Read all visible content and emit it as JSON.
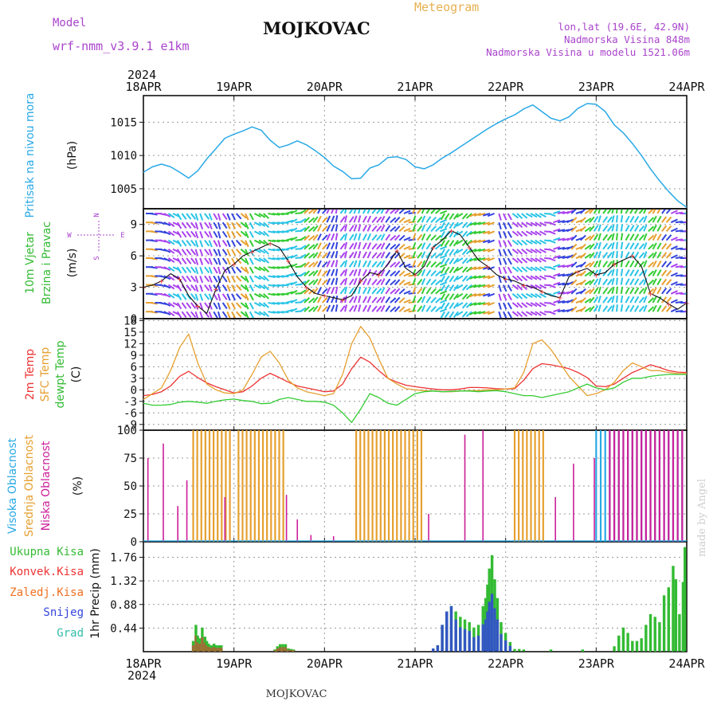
{
  "header": {
    "model_label": "Model",
    "model_name": "wrf-nmm_v3.9.1 e1km",
    "title": "MOJKOVAC",
    "chart_kind": "Meteogram",
    "lonlat": "lon,lat (19.6E, 42.9N)",
    "elevation": "Nadmorska Visina 848m",
    "model_elevation": "Nadmorska Visina u modelu 1521.06m",
    "footer_title": "MOJKOVAC",
    "credit": "made by Angel"
  },
  "colors": {
    "pressure": "#29a9e6",
    "temp2m": "#ee3333",
    "sfc": "#e6a030",
    "dewpt": "#33cc33",
    "high_cloud": "#29a9e6",
    "mid_cloud": "#e6a030",
    "low_cloud": "#cc1f99",
    "total_precip": "#33bb33",
    "conv_precip": "#ee3333",
    "frz_precip": "#f07020",
    "snow": "#3344dd",
    "hail": "#33bbaa",
    "purple_text": "#aa44cc",
    "orange_text": "#e6b050"
  },
  "chart_data": [
    {
      "type": "line",
      "panel": "pressure",
      "ylabel_left": "Pritisak na nivou mora",
      "ylabel_unit": "(hPa)",
      "year": "2024",
      "x_ticks": [
        "18APR",
        "19APR",
        "20APR",
        "21APR",
        "22APR",
        "23APR",
        "24APR"
      ],
      "yticks": [
        1005,
        1010,
        1015
      ],
      "ylim": [
        1002,
        1019
      ],
      "grid": true,
      "x_days": [
        0,
        0.1,
        0.2,
        0.3,
        0.4,
        0.5,
        0.6,
        0.7,
        0.8,
        0.9,
        1.0,
        1.1,
        1.2,
        1.3,
        1.4,
        1.5,
        1.6,
        1.7,
        1.8,
        1.9,
        2.0,
        2.1,
        2.2,
        2.3,
        2.4,
        2.5,
        2.6,
        2.7,
        2.8,
        2.9,
        3.0,
        3.1,
        3.2,
        3.3,
        3.4,
        3.5,
        3.6,
        3.7,
        3.8,
        3.9,
        4.0,
        4.1,
        4.2,
        4.3,
        4.4,
        4.5,
        4.6,
        4.7,
        4.8,
        4.9,
        5.0,
        5.1,
        5.2,
        5.3,
        5.4,
        5.5,
        5.6,
        5.7,
        5.8,
        5.9,
        6.0
      ],
      "values": [
        1007.5,
        1008.3,
        1008.7,
        1008.3,
        1007.5,
        1006.6,
        1007.7,
        1009.5,
        1011.0,
        1012.6,
        1013.2,
        1013.7,
        1014.3,
        1013.8,
        1012.3,
        1011.2,
        1011.6,
        1012.2,
        1011.6,
        1010.7,
        1009.7,
        1008.4,
        1007.6,
        1006.5,
        1006.6,
        1008.1,
        1008.6,
        1009.7,
        1009.8,
        1009.4,
        1008.3,
        1008.0,
        1008.6,
        1009.6,
        1010.4,
        1011.3,
        1012.2,
        1013.1,
        1014.0,
        1014.8,
        1015.5,
        1016.1,
        1017.0,
        1017.6,
        1016.6,
        1015.6,
        1015.2,
        1015.8,
        1017.1,
        1017.8,
        1017.7,
        1016.6,
        1014.6,
        1013.4,
        1011.8,
        1010.0,
        1008.0,
        1006.2,
        1004.6,
        1003.2,
        1002.2
      ]
    },
    {
      "type": "line",
      "panel": "wind",
      "ylabel_left_1": "10m Vjetar",
      "ylabel_left_2": "Brzina i Pravac",
      "ylabel_unit": "(m/s)",
      "compass": {
        "n": "N",
        "w": "W",
        "e": "E",
        "s": "S"
      },
      "yticks": [
        0,
        3,
        6,
        9
      ],
      "ylim": [
        0,
        10.5
      ],
      "grid": true,
      "x_days": [
        0,
        0.1,
        0.2,
        0.3,
        0.4,
        0.5,
        0.6,
        0.7,
        0.8,
        0.9,
        1.0,
        1.1,
        1.2,
        1.3,
        1.4,
        1.5,
        1.6,
        1.7,
        1.8,
        1.9,
        2.0,
        2.1,
        2.2,
        2.3,
        2.4,
        2.5,
        2.6,
        2.7,
        2.8,
        2.9,
        3.0,
        3.1,
        3.2,
        3.3,
        3.4,
        3.5,
        3.6,
        3.7,
        3.8,
        3.9,
        4.0,
        4.1,
        4.2,
        4.3,
        4.4,
        4.5,
        4.6,
        4.7,
        4.8,
        4.9,
        5.0,
        5.1,
        5.2,
        5.3,
        5.4,
        5.5,
        5.6,
        5.7,
        5.8,
        5.9,
        6.0
      ],
      "values": [
        3.0,
        3.2,
        3.6,
        4.3,
        3.8,
        2.2,
        1.2,
        0.5,
        2.8,
        4.6,
        5.2,
        6.0,
        6.4,
        6.8,
        7.2,
        6.8,
        5.5,
        4.0,
        3.0,
        2.4,
        2.2,
        2.0,
        1.8,
        2.2,
        3.6,
        4.4,
        4.2,
        5.2,
        6.5,
        4.8,
        4.2,
        5.0,
        6.8,
        7.5,
        8.4,
        8.0,
        6.8,
        5.6,
        5.0,
        4.2,
        3.8,
        3.6,
        3.2,
        3.0,
        2.6,
        2.2,
        2.0,
        4.0,
        4.5,
        4.8,
        4.2,
        4.4,
        5.2,
        5.6,
        6.0,
        5.0,
        2.4,
        2.0,
        1.4,
        0.9,
        1.5
      ]
    },
    {
      "type": "line",
      "panel": "temperature",
      "ylabel_temp2m": "2m Temp",
      "ylabel_sfc": "SFC Temp",
      "ylabel_dewpt_1": "dewpt Temp",
      "ylabel_unit": "(C)",
      "yticks": [
        -9,
        -6,
        -3,
        0,
        3,
        6,
        9,
        12,
        15,
        18
      ],
      "ylim": [
        -10.5,
        18.5
      ],
      "grid": true,
      "x_days": [
        0,
        0.1,
        0.2,
        0.3,
        0.4,
        0.5,
        0.6,
        0.7,
        0.8,
        0.9,
        1.0,
        1.1,
        1.2,
        1.3,
        1.4,
        1.5,
        1.6,
        1.7,
        1.8,
        1.9,
        2.0,
        2.1,
        2.2,
        2.3,
        2.4,
        2.5,
        2.6,
        2.7,
        2.8,
        2.9,
        3.0,
        3.1,
        3.2,
        3.3,
        3.4,
        3.5,
        3.6,
        3.7,
        3.8,
        3.9,
        4.0,
        4.1,
        4.2,
        4.3,
        4.4,
        4.5,
        4.6,
        4.7,
        4.8,
        4.9,
        5.0,
        5.1,
        5.2,
        5.3,
        5.4,
        5.5,
        5.6,
        5.7,
        5.8,
        5.9,
        6.0
      ],
      "series": [
        {
          "name": "2m Temp",
          "values": [
            -1.5,
            -1.2,
            -0.5,
            1.0,
            3.5,
            4.8,
            3.2,
            1.8,
            0.8,
            0.0,
            -0.8,
            -0.5,
            1.0,
            3.0,
            4.3,
            3.2,
            2.0,
            1.0,
            0.5,
            0.0,
            -0.5,
            -0.3,
            1.5,
            5.5,
            8.5,
            7.2,
            5.0,
            3.0,
            2.0,
            1.2,
            0.8,
            0.5,
            0.2,
            0.0,
            0.0,
            0.2,
            0.6,
            0.6,
            0.5,
            0.3,
            0.2,
            0.3,
            2.5,
            5.5,
            6.8,
            6.5,
            6.0,
            5.5,
            4.5,
            3.2,
            1.0,
            0.8,
            1.5,
            3.0,
            4.5,
            5.5,
            6.5,
            5.8,
            5.0,
            4.6,
            4.5
          ]
        },
        {
          "name": "SFC Temp",
          "values": [
            -2.5,
            -1.0,
            0.5,
            5.0,
            11.0,
            14.5,
            7.0,
            1.5,
            0.0,
            -0.8,
            -1.0,
            0.0,
            4.0,
            8.5,
            10.0,
            7.0,
            2.5,
            0.5,
            -0.5,
            -1.0,
            -1.5,
            -1.0,
            4.0,
            12.0,
            16.5,
            13.5,
            8.0,
            3.0,
            1.5,
            0.3,
            0.0,
            -0.2,
            -0.3,
            -0.5,
            -0.5,
            -0.3,
            -0.2,
            -0.2,
            0.0,
            0.0,
            0.2,
            0.5,
            4.5,
            12.0,
            13.0,
            10.5,
            7.0,
            3.5,
            1.0,
            -1.5,
            -1.0,
            0.0,
            2.0,
            5.0,
            7.0,
            6.0,
            5.0,
            5.0,
            4.5,
            4.2,
            4.2
          ]
        },
        {
          "name": "dewpt Temp",
          "values": [
            -3.5,
            -4.0,
            -4.0,
            -3.8,
            -3.2,
            -3.0,
            -3.2,
            -3.5,
            -3.0,
            -2.6,
            -2.4,
            -2.8,
            -3.0,
            -3.6,
            -3.5,
            -2.5,
            -2.0,
            -2.5,
            -3.0,
            -3.0,
            -3.2,
            -4.0,
            -6.0,
            -8.5,
            -5.0,
            -1.0,
            -2.0,
            -3.5,
            -4.0,
            -2.5,
            -1.0,
            -0.5,
            -0.3,
            -0.5,
            -0.4,
            -0.3,
            -0.3,
            -0.5,
            -0.3,
            -0.2,
            -0.5,
            -1.0,
            -1.5,
            -1.5,
            -2.0,
            -1.5,
            -1.0,
            -0.5,
            0.5,
            1.5,
            0.5,
            0.0,
            0.5,
            2.0,
            3.0,
            3.0,
            3.5,
            3.8,
            4.0,
            4.0,
            4.0
          ]
        }
      ]
    },
    {
      "type": "bar",
      "panel": "clouds",
      "ylabel_high": "Visoka Oblacnost",
      "ylabel_mid": "Srednja Oblacnost",
      "ylabel_low": "Niska Oblacnost",
      "ylabel_unit": "(%)",
      "yticks": [
        0,
        25,
        50,
        75,
        100
      ],
      "ylim": [
        0,
        100
      ],
      "grid": true,
      "mid_cloud_ranges_days": [
        [
          0.55,
          1.0
        ],
        [
          1.05,
          1.55
        ],
        [
          2.35,
          3.1
        ],
        [
          4.1,
          4.42
        ]
      ],
      "high_cloud_ranges_days": [
        [
          5.0,
          5.98
        ]
      ],
      "low_cloud_ranges_days": [
        [
          5.15,
          5.98
        ]
      ]
    },
    {
      "type": "bar",
      "panel": "precip",
      "ylabel_unit": "1hr Precip (mm)",
      "legend": [
        "Ukupna Kisa",
        "Konvek.Kisa",
        "Zaledj.Kisa",
        "Snijeg",
        "Grad"
      ],
      "yticks": [
        0.44,
        0.88,
        1.32,
        1.76
      ],
      "ylim": [
        0,
        2.05
      ],
      "grid": true,
      "x_days": [
        0.55,
        0.58,
        0.6,
        0.62,
        0.65,
        0.68,
        0.7,
        0.72,
        0.75,
        0.78,
        0.8,
        0.83,
        0.86,
        1.45,
        1.48,
        1.51,
        1.54,
        1.57,
        1.6,
        1.63,
        1.66,
        3.2,
        3.25,
        3.3,
        3.35,
        3.4,
        3.45,
        3.5,
        3.55,
        3.6,
        3.65,
        3.7,
        3.75,
        3.78,
        3.8,
        3.82,
        3.85,
        3.88,
        3.91,
        3.95,
        4.0,
        4.05,
        4.1,
        4.15,
        4.2,
        4.5,
        4.85,
        5.2,
        5.25,
        5.3,
        5.35,
        5.4,
        5.45,
        5.5,
        5.55,
        5.6,
        5.65,
        5.7,
        5.75,
        5.8,
        5.85,
        5.88,
        5.92,
        5.96,
        5.98
      ],
      "values": [
        0.2,
        0.5,
        0.3,
        0.25,
        0.45,
        0.28,
        0.2,
        0.15,
        0.12,
        0.15,
        0.12,
        0.12,
        0.12,
        0.04,
        0.1,
        0.14,
        0.14,
        0.14,
        0.06,
        0.05,
        0.04,
        0.06,
        0.12,
        0.5,
        0.75,
        0.85,
        0.75,
        0.65,
        0.6,
        0.55,
        0.45,
        0.5,
        0.85,
        1.0,
        1.25,
        1.55,
        1.8,
        1.35,
        1.0,
        0.55,
        0.35,
        0.18,
        0.05,
        0.05,
        0.04,
        0.04,
        0.04,
        0.1,
        0.3,
        0.45,
        0.35,
        0.2,
        0.2,
        0.25,
        0.5,
        0.7,
        0.65,
        0.55,
        1.05,
        1.2,
        1.6,
        1.35,
        0.7,
        1.3,
        1.95
      ],
      "snow_share": [
        0,
        0,
        0,
        0,
        0,
        0,
        0,
        0,
        0,
        0,
        0,
        0,
        0,
        0,
        0,
        0,
        0,
        0,
        0,
        0,
        0,
        1,
        1,
        1,
        1,
        1,
        0.8,
        0.7,
        0.7,
        0.7,
        0.6,
        0.6,
        0.6,
        0.6,
        0.6,
        0.6,
        0.6,
        0.6,
        0.6,
        0.6,
        0.6,
        0.6,
        0,
        0,
        0,
        0,
        0,
        0,
        0,
        0,
        0,
        0,
        0,
        0,
        0,
        0,
        0,
        0,
        0,
        0,
        0,
        0,
        0,
        0,
        0
      ],
      "conv_share": [
        0.6,
        0.6,
        0.6,
        0.6,
        0.6,
        0.6,
        0.6,
        0.6,
        0.6,
        0.6,
        0.6,
        0.6,
        0.6,
        0.6,
        0.6,
        0.6,
        0.6,
        0.6,
        0.6,
        0.6,
        0.6,
        0,
        0,
        0,
        0,
        0,
        0,
        0,
        0,
        0,
        0,
        0,
        0,
        0,
        0,
        0,
        0,
        0,
        0,
        0,
        0,
        0,
        0,
        0,
        0,
        0,
        0,
        0,
        0,
        0,
        0,
        0,
        0,
        0,
        0,
        0,
        0,
        0,
        0,
        0,
        0,
        0,
        0,
        0,
        0
      ]
    }
  ]
}
